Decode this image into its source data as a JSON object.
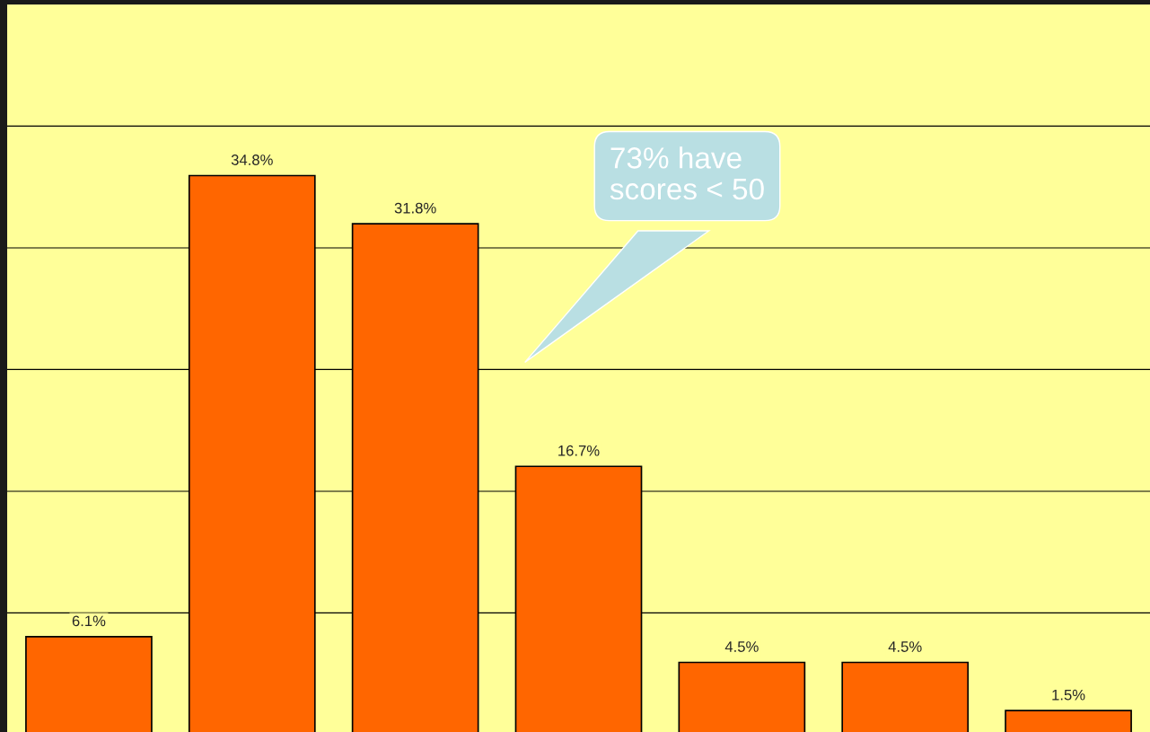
{
  "chart_data": {
    "type": "bar",
    "categories": [
      null,
      null,
      null,
      null,
      null,
      null,
      null
    ],
    "values": [
      6.1,
      34.8,
      31.8,
      16.7,
      4.5,
      4.5,
      1.5
    ],
    "value_labels": [
      "6.1%",
      "34.8%",
      "31.8%",
      "16.7%",
      "4.5%",
      "4.5%",
      "1.5%"
    ],
    "color": "#ff6600",
    "ylim": [
      0,
      45.45
    ],
    "yticks": [
      {
        "value": 7.58,
        "label": null
      },
      {
        "value": 15.15,
        "label": null
      },
      {
        "value": 22.73,
        "label": null
      },
      {
        "value": 30.3,
        "label": null
      },
      {
        "value": 37.88,
        "label": null
      }
    ],
    "grid": "y",
    "legend": false,
    "annotations": [
      "73% have\nscores < 50"
    ]
  }
}
